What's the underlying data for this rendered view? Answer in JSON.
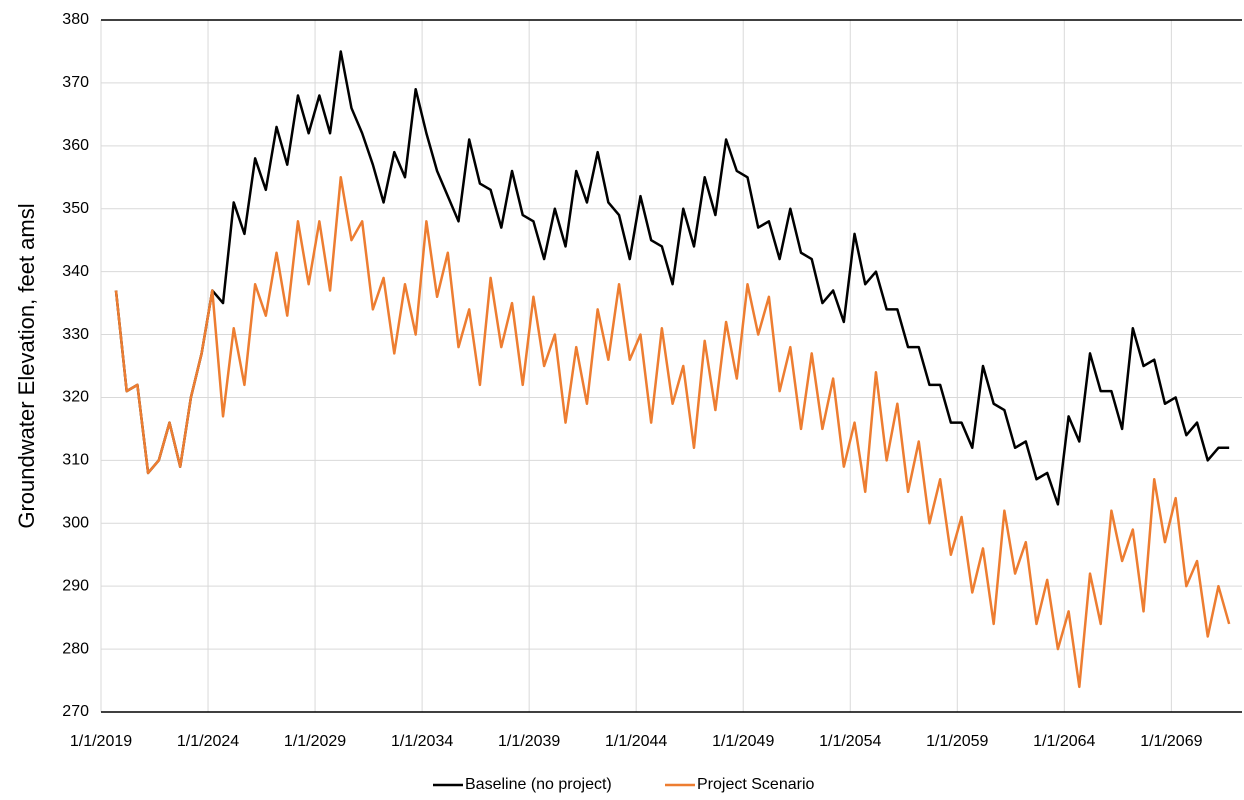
{
  "chart_data": {
    "type": "line",
    "y_label": "Groundwater Elevation, feet amsl",
    "x": [
      2019.7,
      2020.2,
      2020.7,
      2021.2,
      2021.7,
      2022.2,
      2022.7,
      2023.2,
      2023.7,
      2024.2,
      2024.7,
      2025.2,
      2025.7,
      2026.2,
      2026.7,
      2027.2,
      2027.7,
      2028.2,
      2028.7,
      2029.2,
      2029.7,
      2030.2,
      2030.7,
      2031.2,
      2031.7,
      2032.2,
      2032.7,
      2033.2,
      2033.7,
      2034.2,
      2034.7,
      2035.2,
      2035.7,
      2036.2,
      2036.7,
      2037.2,
      2037.7,
      2038.2,
      2038.7,
      2039.2,
      2039.7,
      2040.2,
      2040.7,
      2041.2,
      2041.7,
      2042.2,
      2042.7,
      2043.2,
      2043.7,
      2044.2,
      2044.7,
      2045.2,
      2045.7,
      2046.2,
      2046.7,
      2047.2,
      2047.7,
      2048.2,
      2048.7,
      2049.2,
      2049.7,
      2050.2,
      2050.7,
      2051.2,
      2051.7,
      2052.2,
      2052.7,
      2053.2,
      2053.7,
      2054.2,
      2054.7,
      2055.2,
      2055.7,
      2056.2,
      2056.7,
      2057.2,
      2057.7,
      2058.2,
      2058.7,
      2059.2,
      2059.7,
      2060.2,
      2060.7,
      2061.2,
      2061.7,
      2062.2,
      2062.7,
      2063.2,
      2063.7,
      2064.2,
      2064.7,
      2065.2,
      2065.7,
      2066.2,
      2066.7,
      2067.2,
      2067.7,
      2068.2,
      2068.7,
      2069.2,
      2069.7,
      2070.2,
      2070.7,
      2071.2,
      2071.7
    ],
    "series": [
      {
        "name": "Baseline (no project)",
        "color": "#000000",
        "values": [
          337,
          321,
          322,
          308,
          310,
          316,
          309,
          320,
          327,
          337,
          335,
          351,
          346,
          358,
          353,
          363,
          357,
          368,
          362,
          368,
          362,
          375,
          366,
          362,
          357,
          351,
          359,
          355,
          369,
          362,
          356,
          352,
          348,
          361,
          354,
          353,
          347,
          356,
          349,
          348,
          342,
          350,
          344,
          356,
          351,
          359,
          351,
          349,
          342,
          352,
          345,
          344,
          338,
          350,
          344,
          355,
          349,
          361,
          356,
          355,
          347,
          348,
          342,
          350,
          343,
          342,
          335,
          337,
          332,
          346,
          338,
          340,
          334,
          334,
          328,
          328,
          322,
          322,
          316,
          316,
          312,
          325,
          319,
          318,
          312,
          313,
          307,
          308,
          303,
          317,
          313,
          327,
          321,
          321,
          315,
          331,
          325,
          326,
          319,
          320,
          314,
          316,
          310,
          312,
          312
        ]
      },
      {
        "name": "Project Scenario",
        "color": "#ed7d31",
        "values": [
          337,
          321,
          322,
          308,
          310,
          316,
          309,
          320,
          327,
          337,
          317,
          331,
          322,
          338,
          333,
          343,
          333,
          348,
          338,
          348,
          337,
          355,
          345,
          348,
          334,
          339,
          327,
          338,
          330,
          348,
          336,
          343,
          328,
          334,
          322,
          339,
          328,
          335,
          322,
          336,
          325,
          330,
          316,
          328,
          319,
          334,
          326,
          338,
          326,
          330,
          316,
          331,
          319,
          325,
          312,
          329,
          318,
          332,
          323,
          338,
          330,
          336,
          321,
          328,
          315,
          327,
          315,
          323,
          309,
          316,
          305,
          324,
          310,
          319,
          305,
          313,
          300,
          307,
          295,
          301,
          289,
          296,
          284,
          302,
          292,
          297,
          284,
          291,
          280,
          286,
          274,
          292,
          284,
          302,
          294,
          299,
          286,
          307,
          297,
          304,
          290,
          294,
          282,
          290,
          284
        ]
      }
    ],
    "xlim": [
      2019,
      2072.3
    ],
    "xticks": [
      {
        "value": 2019,
        "label": "1/1/2019"
      },
      {
        "value": 2024,
        "label": "1/1/2024"
      },
      {
        "value": 2029,
        "label": "1/1/2029"
      },
      {
        "value": 2034,
        "label": "1/1/2034"
      },
      {
        "value": 2039,
        "label": "1/1/2039"
      },
      {
        "value": 2044,
        "label": "1/1/2044"
      },
      {
        "value": 2049,
        "label": "1/1/2049"
      },
      {
        "value": 2054,
        "label": "1/1/2054"
      },
      {
        "value": 2059,
        "label": "1/1/2059"
      },
      {
        "value": 2064,
        "label": "1/1/2064"
      },
      {
        "value": 2069,
        "label": "1/1/2069"
      }
    ],
    "ylim": [
      270,
      380
    ],
    "yticks": [
      270,
      280,
      290,
      300,
      310,
      320,
      330,
      340,
      350,
      360,
      370,
      380
    ],
    "grid": true,
    "legend": "bottom"
  }
}
